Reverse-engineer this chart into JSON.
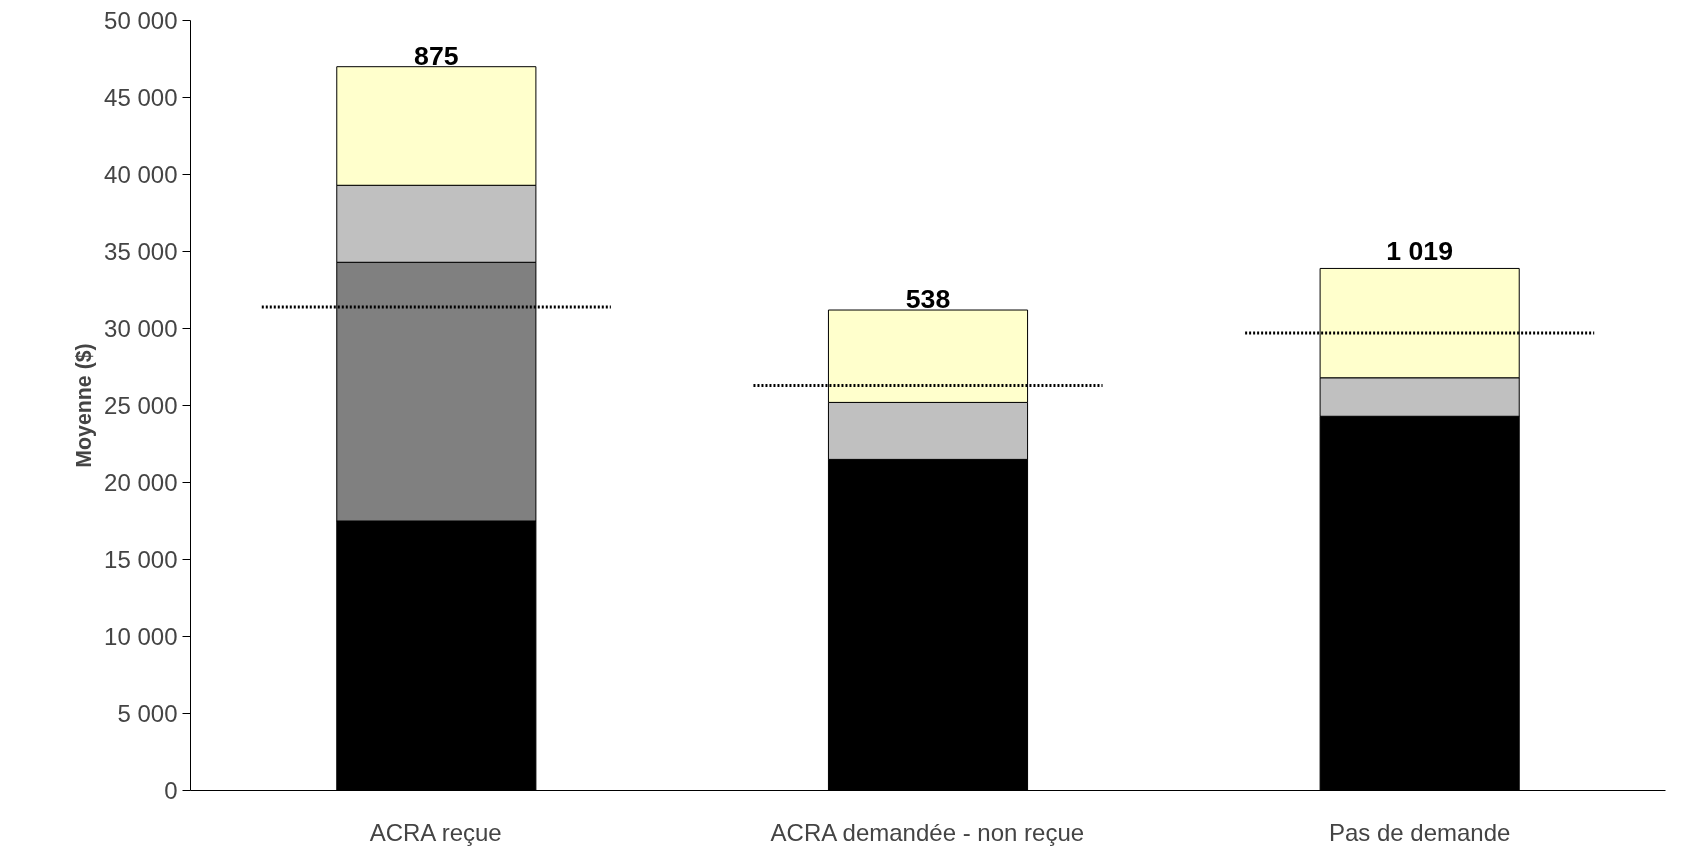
{
  "chart_data": {
    "type": "bar",
    "stacked": true,
    "ylabel": "Moyenne ($)",
    "categories": [
      "ACRA reçue",
      "ACRA demandée - non reçue",
      "Pas de demande"
    ],
    "series": [
      {
        "color": "#000000",
        "values": [
          17500,
          21500,
          24300
        ]
      },
      {
        "color": "#808080",
        "values": [
          16800,
          0,
          0
        ]
      },
      {
        "color": "#c0c0c0",
        "values": [
          5000,
          3700,
          2500
        ]
      },
      {
        "color": "#ffffcc",
        "values": [
          7700,
          6000,
          7100
        ]
      }
    ],
    "ref_lines": [
      {
        "axis": "y",
        "value": 31400,
        "line_style": "dotted",
        "color": "#000000"
      },
      {
        "axis": "y",
        "value": 26300,
        "line_style": "dotted",
        "color": "#000000"
      },
      {
        "axis": "y",
        "value": 29700,
        "line_style": "dotted",
        "color": "#000000"
      }
    ],
    "annotations": [
      {
        "text": "875",
        "x": "ACRA reçue",
        "y": 47000
      },
      {
        "text": "538",
        "x": "ACRA demandée - non reçue",
        "y": 31200
      },
      {
        "text": "1 019",
        "x": "Pas de demande",
        "y": 33900
      }
    ],
    "ylim": [
      0,
      50000
    ],
    "yticks": [
      0,
      {
        "value": 5000,
        "label": "5 000"
      },
      {
        "value": 10000,
        "label": "10 000"
      },
      {
        "value": 15000,
        "label": "15 000"
      },
      {
        "value": 20000,
        "label": "20 000"
      },
      {
        "value": 25000,
        "label": "25 000"
      },
      {
        "value": 30000,
        "label": "30 000"
      },
      {
        "value": 35000,
        "label": "35 000"
      },
      {
        "value": 40000,
        "label": "40 000"
      },
      {
        "value": 45000,
        "label": "45 000"
      },
      {
        "value": 50000,
        "label": "50 000"
      }
    ],
    "grid": false
  }
}
